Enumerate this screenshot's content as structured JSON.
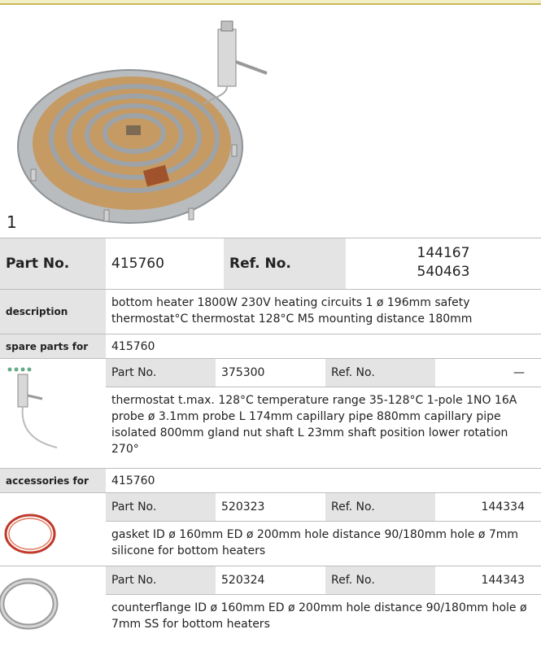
{
  "main": {
    "figure_label": "1",
    "part_no_label": "Part No.",
    "part_no": "415760",
    "ref_no_label": "Ref. No.",
    "ref_no": [
      "144167",
      "540463"
    ],
    "description_label": "description",
    "description": "bottom heater  1800W 230V heating circuits 1 ø 196mm safety thermostat°C thermostat 128°C M5 mounting distance 180mm"
  },
  "spare_parts": {
    "label": "spare parts for",
    "for": "415760",
    "items": [
      {
        "part_no_label": "Part No.",
        "part_no": "375300",
        "ref_no_label": "Ref. No.",
        "ref_no": "—",
        "description": "thermostat  t.max. 128°C temperature range 35-128°C 1-pole 1NO 16A probe ø 3.1mm probe L 174mm capillary pipe 880mm capillary pipe isolated 800mm gland nut shaft L 23mm shaft position lower rotation 270°"
      }
    ]
  },
  "accessories": {
    "label": "accessories for",
    "for": "415760",
    "items": [
      {
        "part_no_label": "Part No.",
        "part_no": "520323",
        "ref_no_label": "Ref. No.",
        "ref_no": "144334",
        "description": "gasket  ID ø 160mm ED ø 200mm hole distance 90/180mm hole ø 7mm silicone for bottom heaters"
      },
      {
        "part_no_label": "Part No.",
        "part_no": "520324",
        "ref_no_label": "Ref. No.",
        "ref_no": "144343",
        "description": "counterflange  ID ø 160mm ED ø 200mm hole distance 90/180mm hole ø 7mm SS for bottom heaters"
      }
    ]
  }
}
